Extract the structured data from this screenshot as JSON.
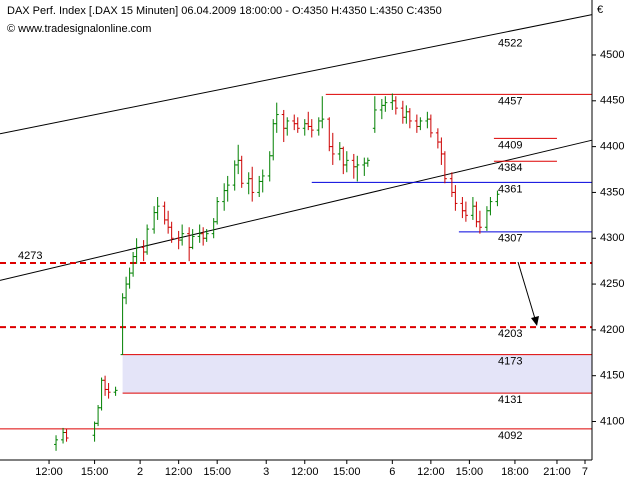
{
  "chart_data": {
    "type": "ohlc",
    "title": "DAX Perf. Index [.DAX  15 Minuten] 06.04.2009 18:00:00 - O:4350 H:4350 L:4350 C:4350",
    "subtitle": "© www.tradesignalonline.com",
    "y_unit": "€",
    "up_color": "#008000",
    "down_color": "#cc0000",
    "xlim": [
      0,
      169
    ],
    "ylim": [
      4058,
      4560
    ],
    "yticks": [
      4100,
      4150,
      4200,
      4250,
      4300,
      4350,
      4400,
      4450,
      4500
    ],
    "xticks": [
      {
        "value": 14,
        "label": "12:00"
      },
      {
        "value": 27,
        "label": "15:00"
      },
      {
        "value": 40,
        "label": "2"
      },
      {
        "value": 51,
        "label": "12:00"
      },
      {
        "value": 62,
        "label": "15:00"
      },
      {
        "value": 76,
        "label": "3"
      },
      {
        "value": 87,
        "label": "12:00"
      },
      {
        "value": 99,
        "label": "15:00"
      },
      {
        "value": 112,
        "label": "6"
      },
      {
        "value": 123,
        "label": "12:00"
      },
      {
        "value": 134,
        "label": "15:00"
      },
      {
        "value": 147,
        "label": "18:00"
      },
      {
        "value": 159,
        "label": "21:00"
      },
      {
        "value": 167,
        "label": "7"
      }
    ],
    "x": [
      16,
      18,
      19,
      27,
      28,
      29,
      30,
      31,
      33,
      35,
      36,
      37,
      38,
      39,
      41,
      42,
      44,
      45,
      47,
      48,
      49,
      51,
      52,
      54,
      55,
      57,
      58,
      59,
      61,
      62,
      64,
      65,
      67,
      68,
      69,
      71,
      72,
      74,
      75,
      77,
      78,
      79,
      81,
      82,
      84,
      85,
      87,
      88,
      89,
      91,
      92,
      94,
      95,
      97,
      98,
      99,
      101,
      102,
      104,
      105,
      107,
      109,
      110,
      112,
      113,
      115,
      116,
      117,
      119,
      120,
      122,
      123,
      125,
      126,
      127,
      129,
      130,
      132,
      133,
      135,
      136,
      137,
      139,
      140,
      142
    ],
    "open": [
      4075,
      4080,
      4088,
      4085,
      4098,
      4115,
      4145,
      4135,
      4132,
      4173,
      4235,
      4250,
      4262,
      4280,
      4290,
      4285,
      4310,
      4328,
      4335,
      4320,
      4312,
      4300,
      4298,
      4305,
      4290,
      4302,
      4305,
      4300,
      4305,
      4318,
      4340,
      4352,
      4358,
      4380,
      4385,
      4360,
      4365,
      4350,
      4362,
      4368,
      4390,
      4425,
      4435,
      4420,
      4428,
      4425,
      4420,
      4425,
      4422,
      4418,
      4428,
      4430,
      4400,
      4392,
      4398,
      4380,
      4385,
      4378,
      4380,
      4382,
      4420,
      4440,
      4445,
      4448,
      4450,
      4442,
      4432,
      4438,
      4428,
      4422,
      4428,
      4430,
      4415,
      4405,
      4392,
      4365,
      4350,
      4338,
      4330,
      4325,
      4335,
      4318,
      4312,
      4330,
      4340
    ],
    "high": [
      4085,
      4093,
      4092,
      4100,
      4118,
      4148,
      4150,
      4142,
      4138,
      4240,
      4258,
      4268,
      4285,
      4300,
      4298,
      4315,
      4335,
      4345,
      4340,
      4330,
      4318,
      4308,
      4315,
      4312,
      4310,
      4315,
      4312,
      4310,
      4322,
      4345,
      4360,
      4368,
      4385,
      4402,
      4390,
      4372,
      4378,
      4368,
      4375,
      4395,
      4430,
      4448,
      4440,
      4432,
      4435,
      4432,
      4430,
      4438,
      4430,
      4432,
      4455,
      4432,
      4415,
      4405,
      4400,
      4395,
      4392,
      4390,
      4388,
      4388,
      4455,
      4452,
      4455,
      4458,
      4455,
      4450,
      4445,
      4442,
      4435,
      4432,
      4438,
      4435,
      4420,
      4410,
      4395,
      4372,
      4358,
      4345,
      4340,
      4345,
      4340,
      4330,
      4335,
      4345,
      4352
    ],
    "low": [
      4068,
      4076,
      4078,
      4078,
      4095,
      4112,
      4128,
      4125,
      4128,
      4173,
      4228,
      4245,
      4258,
      4272,
      4275,
      4282,
      4305,
      4320,
      4315,
      4305,
      4295,
      4288,
      4292,
      4275,
      4288,
      4295,
      4292,
      4296,
      4300,
      4315,
      4330,
      4340,
      4352,
      4370,
      4355,
      4348,
      4340,
      4345,
      4350,
      4362,
      4385,
      4415,
      4405,
      4412,
      4418,
      4415,
      4412,
      4418,
      4410,
      4412,
      4420,
      4395,
      4380,
      4385,
      4370,
      4372,
      4365,
      4362,
      4368,
      4378,
      4415,
      4430,
      4438,
      4440,
      4435,
      4425,
      4425,
      4420,
      4415,
      4418,
      4420,
      4410,
      4398,
      4380,
      4360,
      4345,
      4330,
      4322,
      4318,
      4320,
      4312,
      4305,
      4308,
      4325,
      4335
    ],
    "close": [
      4080,
      4088,
      4082,
      4098,
      4115,
      4145,
      4135,
      4132,
      4134,
      4235,
      4250,
      4262,
      4280,
      4290,
      4285,
      4310,
      4328,
      4335,
      4320,
      4312,
      4300,
      4298,
      4305,
      4290,
      4302,
      4305,
      4300,
      4305,
      4318,
      4340,
      4352,
      4358,
      4380,
      4385,
      4360,
      4365,
      4350,
      4362,
      4368,
      4390,
      4425,
      4435,
      4420,
      4428,
      4425,
      4420,
      4425,
      4422,
      4418,
      4428,
      4430,
      4400,
      4392,
      4398,
      4380,
      4385,
      4378,
      4380,
      4382,
      4385,
      4440,
      4445,
      4448,
      4450,
      4442,
      4432,
      4438,
      4428,
      4422,
      4428,
      4430,
      4415,
      4405,
      4392,
      4365,
      4350,
      4338,
      4330,
      4325,
      4335,
      4318,
      4312,
      4330,
      4340,
      4348
    ],
    "trendlines": [
      {
        "x": [
          0,
          169
        ],
        "y": [
          4414,
          4544
        ],
        "color": "#000000"
      },
      {
        "x": [
          0,
          169
        ],
        "y": [
          4254,
          4407
        ],
        "color": "#000000"
      }
    ],
    "annotations": [
      {
        "value": 4522,
        "color": "#000000"
      }
    ],
    "zone": {
      "x": [
        35,
        169
      ],
      "y": [
        4131,
        4173
      ],
      "color": "#e4e4f8"
    },
    "levels": [
      {
        "value": 4457,
        "x": [
          93,
          169
        ],
        "color": "#dd0000",
        "dash": false,
        "label_at": "right"
      },
      {
        "value": 4409,
        "x": [
          141,
          159
        ],
        "color": "#dd0000",
        "dash": false,
        "label_at": "right"
      },
      {
        "value": 4384,
        "x": [
          141,
          159
        ],
        "color": "#dd0000",
        "dash": false,
        "label_at": "right"
      },
      {
        "value": 4361,
        "x": [
          89,
          169
        ],
        "color": "#0000dd",
        "dash": false,
        "label_at": "right"
      },
      {
        "value": 4307,
        "x": [
          131,
          169
        ],
        "color": "#0000dd",
        "dash": false,
        "label_at": "right"
      },
      {
        "value": 4273,
        "x": [
          0,
          169
        ],
        "color": "#dd0000",
        "dash": true,
        "label_at": "left"
      },
      {
        "value": 4203,
        "x": [
          0,
          169
        ],
        "color": "#dd0000",
        "dash": true,
        "label_at": "right"
      },
      {
        "value": 4173,
        "x": [
          35,
          169
        ],
        "color": "#dd0000",
        "dash": false,
        "label_at": "right"
      },
      {
        "value": 4131,
        "x": [
          35,
          169
        ],
        "color": "#dd0000",
        "dash": false,
        "label_at": "right"
      },
      {
        "value": 4092,
        "x": [
          0,
          169
        ],
        "color": "#dd0000",
        "dash": false,
        "label_at": "right"
      }
    ]
  }
}
